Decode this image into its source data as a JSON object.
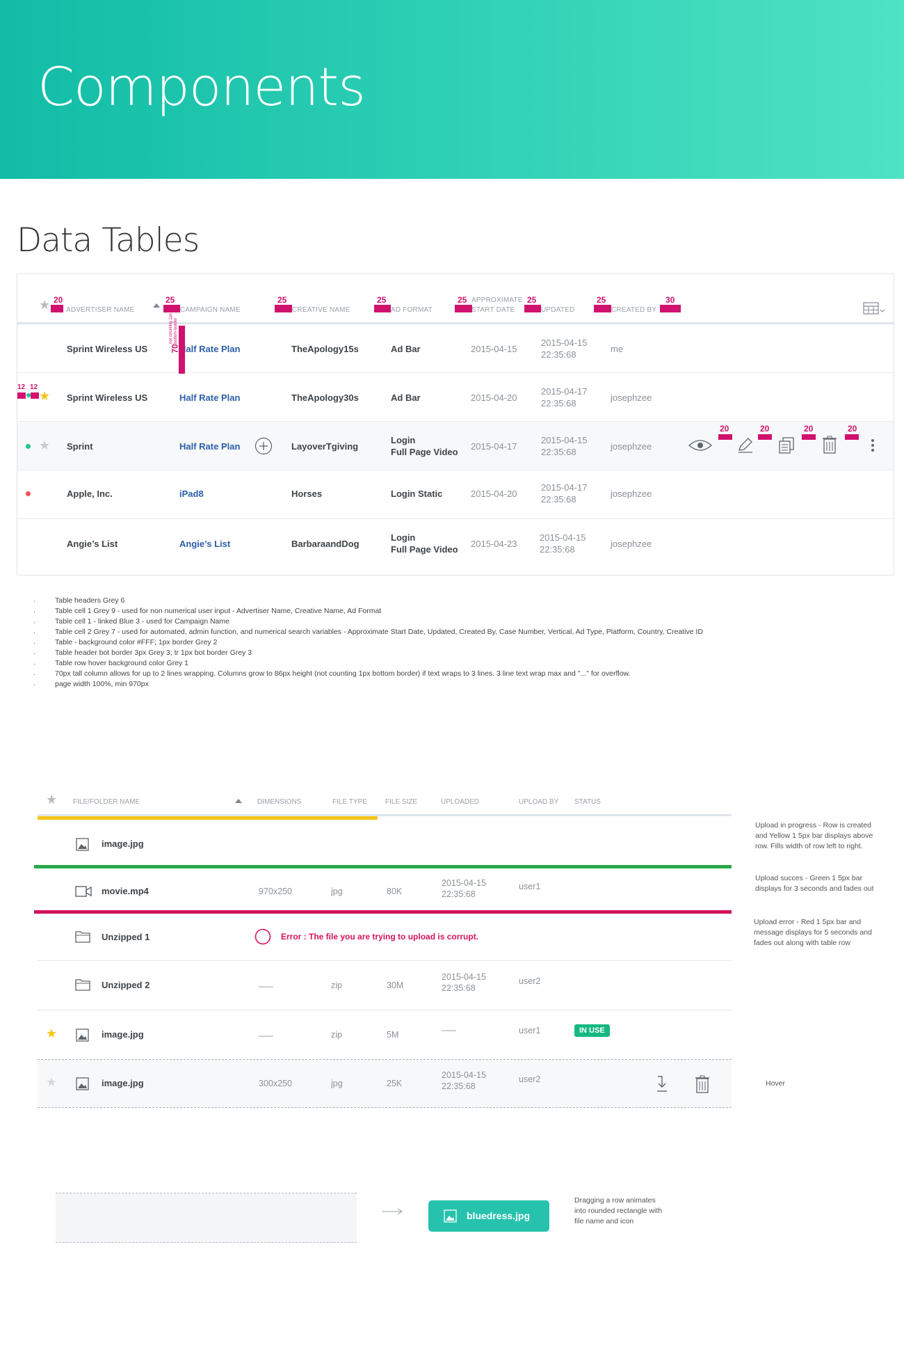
{
  "hero": {
    "title": "Components"
  },
  "section": {
    "title": "Data Tables"
  },
  "table1": {
    "headers": {
      "advertiser": "Advertiser Name",
      "campaign": "Campaign Name",
      "creative": "Creative Name",
      "ad_format": "Ad Format",
      "start_date_1": "Approximate",
      "start_date_2": "Start Date",
      "updated": "Updated",
      "created_by": "Created By"
    },
    "spec_marks": {
      "h1": "20",
      "h2": "25",
      "h3": "25",
      "h4": "25",
      "h5": "25",
      "h6": "25",
      "h7": "25",
      "h8": "30",
      "row_height": "70",
      "row_note": "not counting 1px bottom border",
      "s1": "12",
      "s2": "12",
      "a1": "20",
      "a2": "20",
      "a3": "20",
      "a4": "20"
    },
    "rows": [
      {
        "advertiser": "Sprint Wireless US",
        "campaign": "Half Rate Plan",
        "creative": "TheApology15s",
        "format_1": "Ad Bar",
        "format_2": "",
        "start": "2015-04-15",
        "updated_1": "2015-04-15",
        "updated_2": "22:35:68",
        "created_by": "me"
      },
      {
        "advertiser": "Sprint Wireless US",
        "campaign": "Half Rate Plan",
        "creative": "TheApology30s",
        "format_1": "Ad Bar",
        "format_2": "",
        "start": "2015-04-20",
        "updated_1": "2015-04-17",
        "updated_2": "22:35:68",
        "created_by": "josephzee"
      },
      {
        "advertiser": "Sprint",
        "campaign": "Half Rate Plan",
        "creative": "LayoverTgiving",
        "format_1": "Login",
        "format_2": "Full Page Video",
        "start": "2015-04-17",
        "updated_1": "2015-04-15",
        "updated_2": "22:35:68",
        "created_by": "josephzee"
      },
      {
        "advertiser": "Apple, Inc.",
        "campaign": "iPad8",
        "creative": "Horses",
        "format_1": "Login Static",
        "format_2": "",
        "start": "2015-04-20",
        "updated_1": "2015-04-17",
        "updated_2": "22:35:68",
        "created_by": "josephzee"
      },
      {
        "advertiser": "Angie’s List",
        "campaign": "Angie’s List",
        "creative": "BarbaraandDog",
        "format_1": "Login",
        "format_2": "Full Page Video",
        "start": "2015-04-23",
        "updated_1": "2015-04-15",
        "updated_2": "22:35:68",
        "created_by": "josephzee"
      }
    ],
    "colors": {
      "blue3": "#2b5fa9",
      "status_green": "#1cc88a",
      "status_red": "#f0525a",
      "marker": "#d0116e"
    }
  },
  "notes": [
    "Table headers Grey 6",
    "Table cell 1 Grey 9 - used for non numerical user input - Advertiser Name, Creative Name, Ad Format",
    "Table cell 1 - linked Blue 3 - used for Campaign Name",
    "Table cell 2 Grey 7 - used for automated, admin function, and numerical search variables - Approximate Start Date, Updated, Created By, Case Number, Vertical, Ad Type, Platform, Country, Creative ID",
    "Table - background color #FFF; 1px border Grey 2",
    "Table header bot border 3px Grey 3; tr 1px bot border Grey 3",
    "Table row hover background color Grey 1",
    "70px tall column allows for up to 2 lines wrapping. Columns grow to 86px height  (not counting 1px bottom border) if text wraps to 3 lines. 3 line text wrap max and \"...\" for overflow.",
    "page width 100%, min 970px"
  ],
  "table2": {
    "headers": {
      "name": "File/Folder Name",
      "dimensions": "Dimensions",
      "file_type": "File Type",
      "file_size": "File Size",
      "uploaded": "Uploaded",
      "upload_by": "Upload By",
      "status": "Status"
    },
    "rows": [
      {
        "name": "image.jpg",
        "icon": "image-icon"
      },
      {
        "name": "movie.mp4",
        "icon": "video-icon",
        "dimensions": "970x250",
        "type": "jpg",
        "size": "80K",
        "uploaded_1": "2015-04-15",
        "uploaded_2": "22:35:68",
        "by": "user1"
      },
      {
        "name": "Unzipped 1",
        "icon": "folder-icon",
        "error": "Error : The file you are trying to upload is corrupt."
      },
      {
        "name": "Unzipped 2",
        "icon": "folder-icon",
        "dimensions": "___",
        "type": "zip",
        "size": "30M",
        "uploaded_1": "2015-04-15",
        "uploaded_2": "22:35:68",
        "by": "user2"
      },
      {
        "name": "image.jpg",
        "icon": "image-icon",
        "dimensions": "___",
        "type": "zip",
        "size": "5M",
        "uploaded_1": "___",
        "by": "user1",
        "status": "IN USE"
      },
      {
        "name": "image.jpg",
        "icon": "image-icon",
        "dimensions": "300x250",
        "type": "jpg",
        "size": "25K",
        "uploaded_1": "2015-04-15",
        "uploaded_2": "22:35:68",
        "by": "user2"
      }
    ],
    "progress": {
      "upload_in_progress_fraction": 0.49,
      "upload_success_fraction": 1.0,
      "upload_error_fraction": 1.0
    },
    "side_notes": {
      "progress": [
        "Upload in progress - Row is created",
        "and Yellow 1 5px bar displays above",
        "row. Fills width of row left to right."
      ],
      "success": [
        "Upload succes - Green 1 5px bar",
        "displays for 3 seconds and fades out"
      ],
      "error": [
        "Upload error - Red 1 5px bar and",
        "message displays for 5 seconds and",
        "fades out along with table row"
      ],
      "hover": "Hover"
    },
    "colors": {
      "yellow1": "#f5c518",
      "green1": "#29a84a",
      "red1": "#d3145a",
      "badge": "#16b881"
    }
  },
  "drag": {
    "pill_label": "bluedress.jpg",
    "note": [
      "Dragging  a row animates",
      "into rounded rectangle with",
      "file name and icon"
    ]
  }
}
